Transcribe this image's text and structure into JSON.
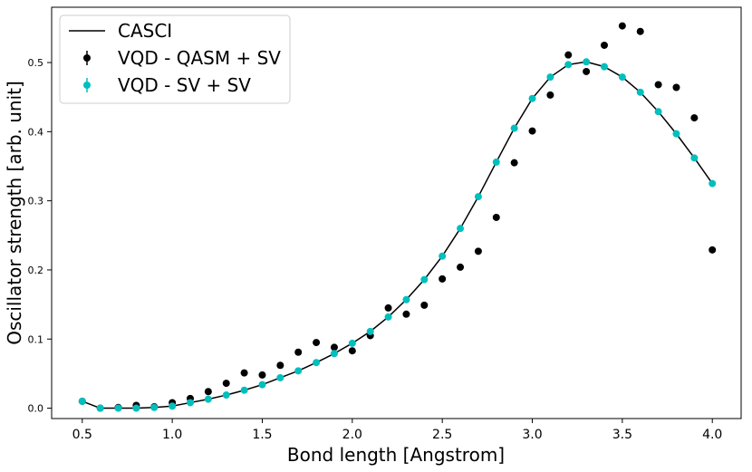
{
  "chart_data": {
    "type": "scatter",
    "title": "",
    "xlabel": "Bond length [Angstrom]",
    "ylabel": "Oscillator strength [arb. unit]",
    "xlim": [
      0.33,
      4.16
    ],
    "ylim": [
      -0.015,
      0.58
    ],
    "xticks": [
      0.5,
      1.0,
      1.5,
      2.0,
      2.5,
      3.0,
      3.5,
      4.0
    ],
    "xtick_labels": [
      "0.5",
      "1.0",
      "1.5",
      "2.0",
      "2.5",
      "3.0",
      "3.5",
      "4.0"
    ],
    "yticks": [
      0.0,
      0.1,
      0.2,
      0.3,
      0.4,
      0.5
    ],
    "ytick_labels": [
      "0.0",
      "0.1",
      "0.2",
      "0.3",
      "0.4",
      "0.5"
    ],
    "legend_position": "top-left",
    "x": [
      0.5,
      0.6,
      0.7,
      0.8,
      0.9,
      1.0,
      1.1,
      1.2,
      1.3,
      1.4,
      1.5,
      1.6,
      1.7,
      1.8,
      1.9,
      2.0,
      2.1,
      2.2,
      2.3,
      2.4,
      2.5,
      2.6,
      2.7,
      2.8,
      2.9,
      3.0,
      3.1,
      3.2,
      3.3,
      3.4,
      3.5,
      3.6,
      3.7,
      3.8,
      3.9,
      4.0
    ],
    "series": [
      {
        "name": "CASCI",
        "kind": "line",
        "color": "#000000",
        "values": [
          0.01,
          0.0,
          0.0,
          0.0,
          0.001,
          0.003,
          0.008,
          0.013,
          0.019,
          0.026,
          0.034,
          0.044,
          0.054,
          0.066,
          0.079,
          0.094,
          0.111,
          0.132,
          0.157,
          0.186,
          0.22,
          0.26,
          0.306,
          0.356,
          0.405,
          0.448,
          0.479,
          0.497,
          0.501,
          0.494,
          0.479,
          0.457,
          0.429,
          0.397,
          0.362,
          0.325
        ]
      },
      {
        "name": "VQD - QASM + SV",
        "kind": "scatter",
        "color": "#000000",
        "values": [
          0.01,
          0.0,
          0.001,
          0.004,
          0.002,
          0.008,
          0.014,
          0.024,
          0.036,
          0.051,
          0.048,
          0.062,
          0.081,
          0.095,
          0.088,
          0.083,
          0.105,
          0.145,
          0.136,
          0.149,
          0.187,
          0.204,
          0.227,
          0.276,
          0.355,
          0.401,
          0.453,
          0.511,
          0.487,
          0.525,
          0.553,
          0.545,
          0.468,
          0.464,
          0.42,
          0.229
        ]
      },
      {
        "name": "VQD - SV + SV",
        "kind": "scatter",
        "color": "#00bfbf",
        "values": [
          0.01,
          0.0,
          0.0,
          0.0,
          0.001,
          0.003,
          0.008,
          0.013,
          0.019,
          0.026,
          0.034,
          0.044,
          0.054,
          0.066,
          0.079,
          0.094,
          0.111,
          0.132,
          0.157,
          0.186,
          0.22,
          0.26,
          0.306,
          0.356,
          0.405,
          0.448,
          0.479,
          0.497,
          0.501,
          0.494,
          0.479,
          0.457,
          0.429,
          0.397,
          0.362,
          0.325
        ]
      }
    ]
  }
}
